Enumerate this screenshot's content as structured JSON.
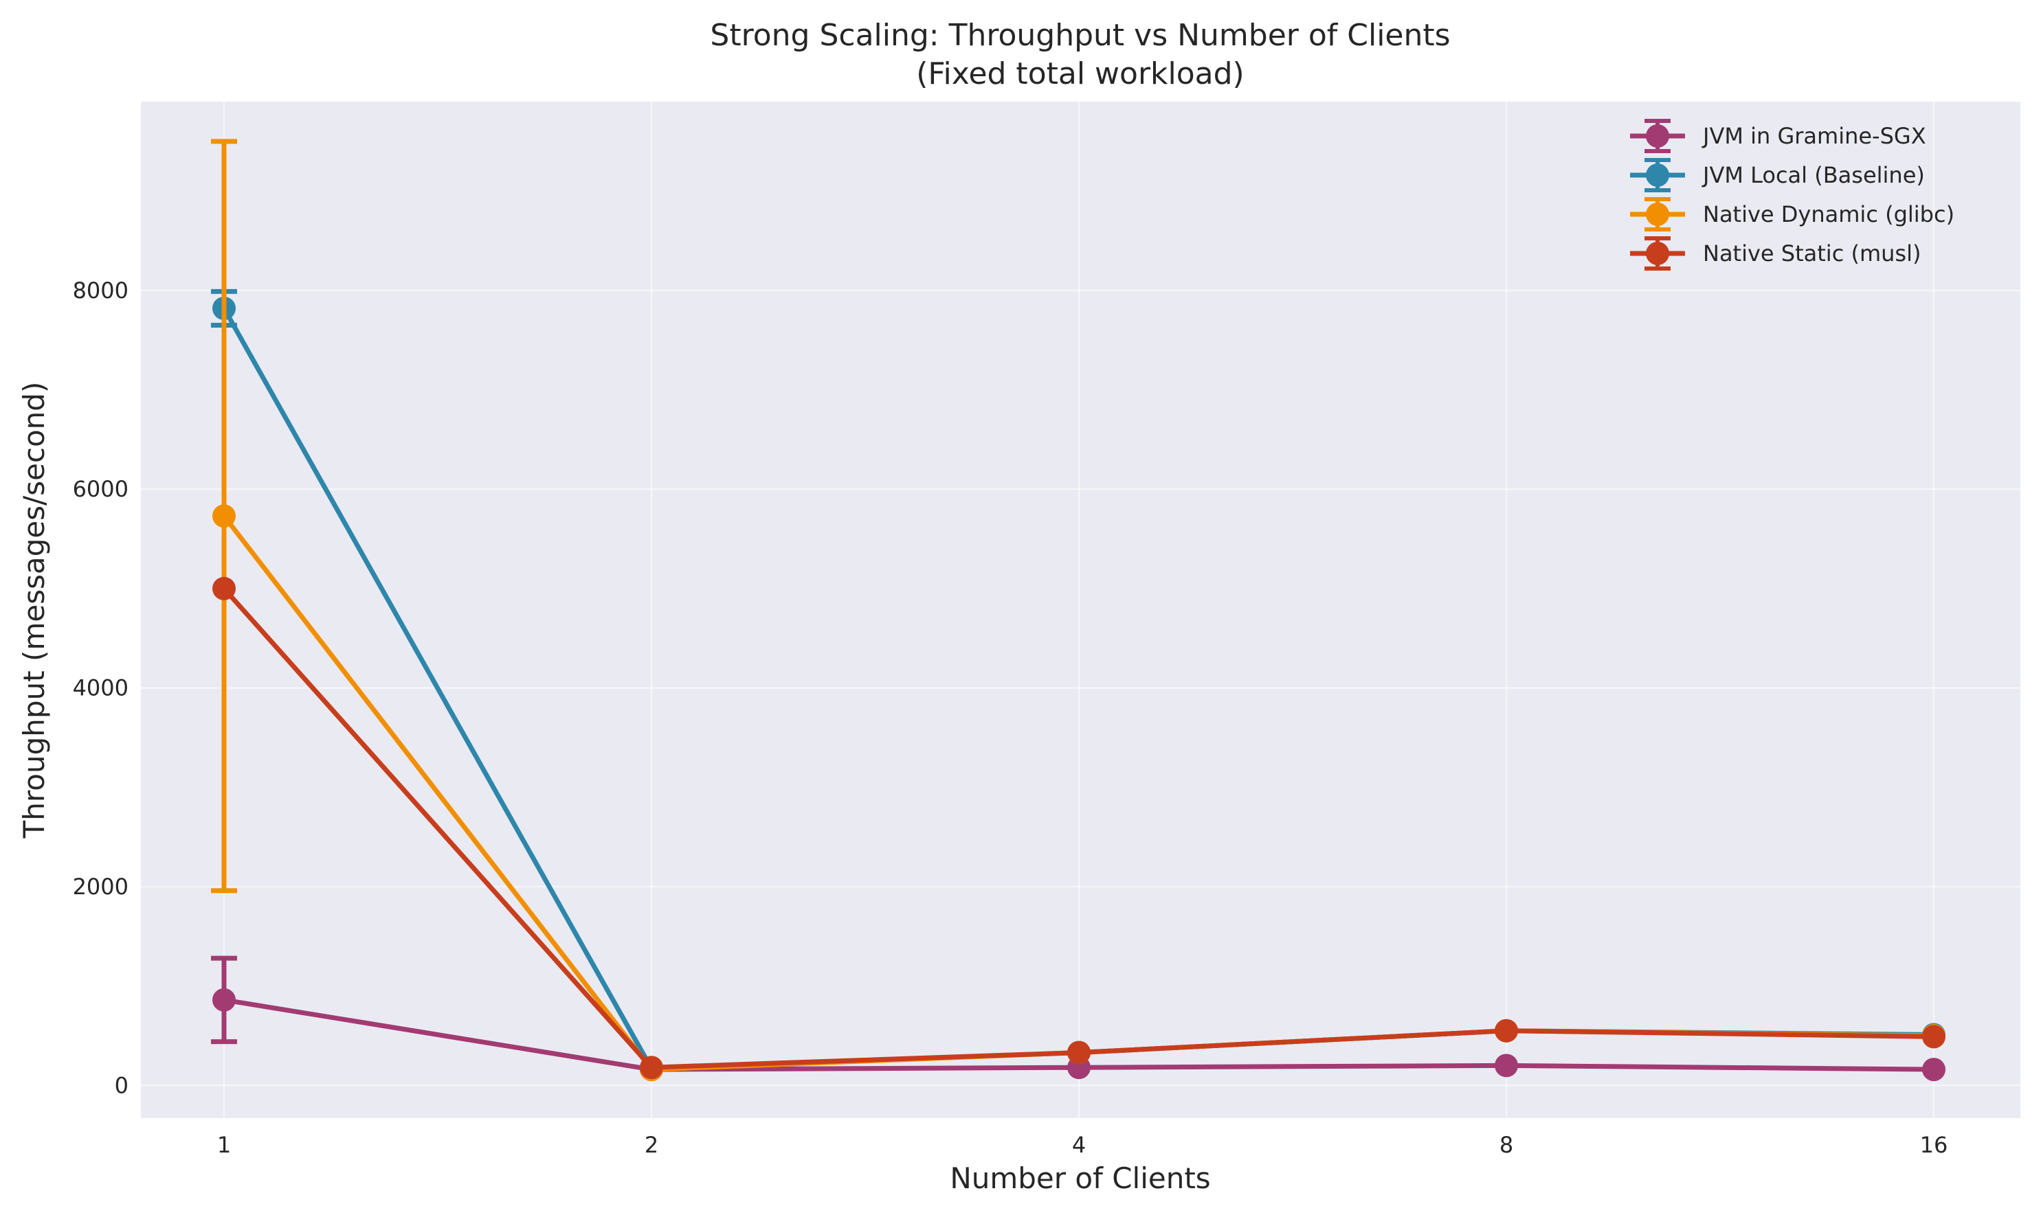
{
  "chart_data": {
    "type": "line",
    "title": "Strong Scaling: Throughput vs Number of Clients",
    "subtitle": "(Fixed total workload)",
    "xlabel": "Number of Clients",
    "ylabel": "Throughput (messages/second)",
    "x": [
      1,
      2,
      4,
      8,
      16
    ],
    "x_tick_labels": [
      "1",
      "2",
      "4",
      "8",
      "16"
    ],
    "x_scale": "log2",
    "y_ticks": [
      0,
      2000,
      4000,
      6000,
      8000
    ],
    "y_tick_labels": [
      "0",
      "2000",
      "4000",
      "6000",
      "8000"
    ],
    "ylim": [
      -330,
      9900
    ],
    "grid": true,
    "legend_position": "top-right",
    "series": [
      {
        "name": "JVM in Gramine-SGX",
        "color": "#A23B72",
        "values": [
          860,
          160,
          180,
          200,
          160
        ],
        "error": [
          420,
          0,
          0,
          0,
          0
        ]
      },
      {
        "name": "JVM Local (Baseline)",
        "color": "#2E86AB",
        "values": [
          7820,
          170,
          330,
          550,
          510
        ],
        "error": [
          170,
          0,
          0,
          0,
          0
        ]
      },
      {
        "name": "Native Dynamic (glibc)",
        "color": "#F18F01",
        "values": [
          5730,
          160,
          330,
          550,
          500
        ],
        "error": [
          3770,
          0,
          0,
          0,
          0
        ]
      },
      {
        "name": "Native Static (musl)",
        "color": "#C73E1D",
        "values": [
          5000,
          180,
          330,
          550,
          490
        ],
        "error": [
          0,
          0,
          0,
          0,
          0
        ]
      }
    ]
  }
}
